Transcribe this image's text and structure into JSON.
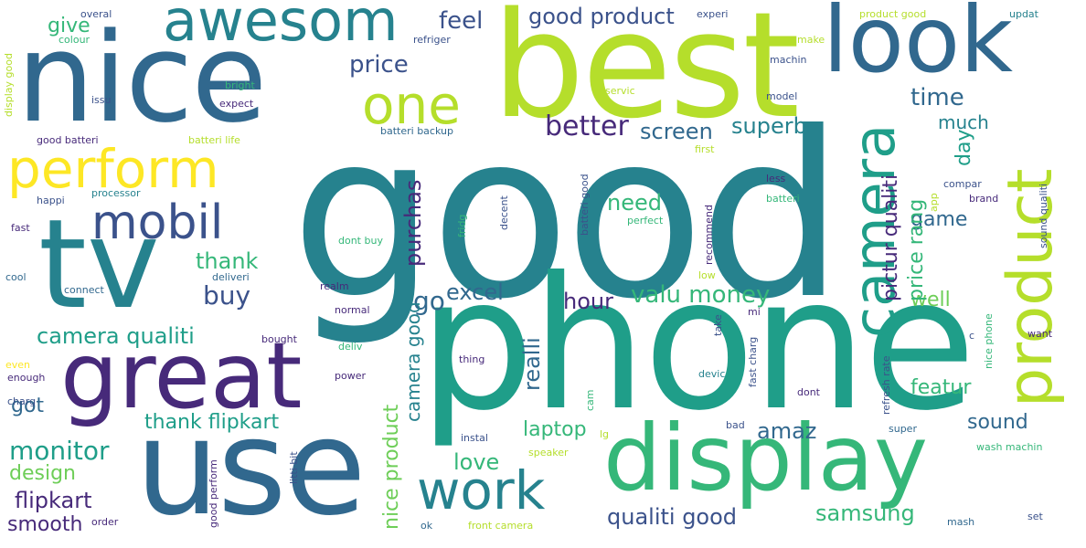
{
  "colors": {
    "purple": "#472a7a",
    "indigo": "#3b528b",
    "blue": "#31688e",
    "teal": "#26828e",
    "green_teal": "#1f9e89",
    "green": "#35b779",
    "light_green": "#6ece58",
    "lime": "#b5de2b",
    "yellow": "#fde725"
  },
  "words": {
    "good": "good",
    "phone": "phone",
    "best": "best",
    "nice": "nice",
    "use": "use",
    "tv": "tv",
    "great": "great",
    "display": "display",
    "look": "look",
    "awesom": "awesom",
    "perform": "perform",
    "mobil": "mobil",
    "product": "product",
    "camera": "camera",
    "one": "one",
    "work": "work",
    "good_product": "good product",
    "price": "price",
    "feel": "feel",
    "give": "give",
    "better": "better",
    "screen": "screen",
    "superb": "superb",
    "time": "time",
    "much": "much",
    "need": "need",
    "thank": "thank",
    "buy": "buy",
    "valu_money": "valu money",
    "go": "go",
    "excel": "excel",
    "hour": "hour",
    "camera_qualiti": "camera qualiti",
    "got": "got",
    "thank_flipkart": "thank flipkart",
    "monitor": "monitor",
    "design": "design",
    "flipkart": "flipkart",
    "smooth": "smooth",
    "laptop": "laptop",
    "love": "love",
    "amaz": "amaz",
    "qualiti_good": "qualiti good",
    "samsung": "samsung",
    "sound": "sound",
    "featur": "featur",
    "well": "well",
    "game": "game",
    "day": "day",
    "realli": "realli",
    "purchas": "purchas",
    "pictur_qualiti": "pictur qualiti",
    "price_rang": "price rang",
    "camera_good": "camera good",
    "nice_product": "nice product",
    "overal": "overal",
    "colour": "colour",
    "refriger": "refriger",
    "experi": "experi",
    "product_good": "product good",
    "updat": "updat",
    "display_good": "display good",
    "bright": "bright",
    "issu": "issu",
    "expect": "expect",
    "good_batteri": "good batteri",
    "batteri_life": "batteri life",
    "batteri_backup": "batteri backup",
    "make": "make",
    "machin": "machin",
    "model": "model",
    "servic": "servic",
    "happi": "happi",
    "processor": "processor",
    "fast": "fast",
    "cool": "cool",
    "deliveri": "deliveri",
    "connect": "connect",
    "realm": "realm",
    "normal": "normal",
    "bought": "bought",
    "deliv": "deliv",
    "power": "power",
    "even": "even",
    "enough": "enough",
    "charg": "charg",
    "first": "first",
    "compar": "compar",
    "brand": "brand",
    "batteri": "batteri",
    "app": "app",
    "less": "less",
    "recommend": "recommend",
    "perfect": "perfect",
    "fridg": "fridg",
    "decent": "decent",
    "batteri_good": "batteri good",
    "dont_buy": "dont buy",
    "low": "low",
    "mi": "mi",
    "take": "take",
    "devic": "devic",
    "fast_charg": "fast charg",
    "dont": "dont",
    "refresh_rate": "refresh rate",
    "nice_phone": "nice phone",
    "want": "want",
    "c": "c",
    "sound_qualiti": "sound qualiti",
    "thing": "thing",
    "instal": "instal",
    "cam": "cam",
    "speaker": "speaker",
    "lg": "lg",
    "bad": "bad",
    "super": "super",
    "wash_machin": "wash machin",
    "mash": "mash",
    "set": "set",
    "front_camera": "front camera",
    "ok": "ok",
    "order": "order",
    "good_perform": "good perform",
    "litti_bit": "litti bit"
  }
}
